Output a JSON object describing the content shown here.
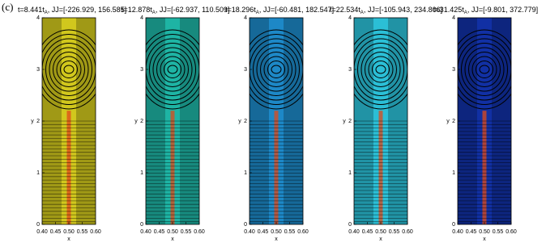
{
  "panel_label": "(c)",
  "chart_data": [
    {
      "type": "contour",
      "title": [
        "t=8.441t",
        "A",
        ", JJ=[-226.929, 156.585]"
      ],
      "xlabel": "x",
      "ylabel": "y",
      "color": "#d6cc1e",
      "xlim": [
        0.4,
        0.6
      ],
      "xticks": [
        {
          "value": 0.4,
          "label": "0.40"
        },
        {
          "value": 0.45,
          "label": "0.45"
        },
        {
          "value": 0.5,
          "label": "0.50"
        },
        {
          "value": 0.55,
          "label": "0.55"
        },
        {
          "value": 0.6,
          "label": "0.60"
        }
      ],
      "ylim": [
        0,
        4
      ],
      "yticks": [
        0,
        1,
        2,
        3,
        4
      ]
    },
    {
      "type": "contour",
      "title": [
        "t=12.878t",
        "A",
        ", JJ=[-62.937, 110.509]"
      ],
      "xlabel": "x",
      "ylabel": "y",
      "color": "#1fb8a8",
      "xlim": [
        0.4,
        0.6
      ],
      "xticks": [
        {
          "value": 0.4,
          "label": "0.40"
        },
        {
          "value": 0.45,
          "label": "0.45"
        },
        {
          "value": 0.5,
          "label": "0.50"
        },
        {
          "value": 0.55,
          "label": "0.55"
        },
        {
          "value": 0.6,
          "label": "0.60"
        }
      ],
      "ylim": [
        0,
        4
      ],
      "yticks": [
        0,
        1,
        2,
        3,
        4
      ]
    },
    {
      "type": "contour",
      "title": [
        "t=18.296t",
        "A",
        ", JJ=[-60.481, 182.547]"
      ],
      "xlabel": "x",
      "ylabel": "y",
      "color": "#1e8ccc",
      "xlim": [
        0.4,
        0.6
      ],
      "xticks": [
        {
          "value": 0.4,
          "label": "0.40"
        },
        {
          "value": 0.45,
          "label": "0.45"
        },
        {
          "value": 0.5,
          "label": "0.50"
        },
        {
          "value": 0.55,
          "label": "0.55"
        },
        {
          "value": 0.6,
          "label": "0.60"
        }
      ],
      "ylim": [
        0,
        4
      ],
      "yticks": [
        0,
        1,
        2,
        3,
        4
      ]
    },
    {
      "type": "contour",
      "title": [
        "t=22.534t",
        "A",
        ", JJ=[-105.943, 234.806]"
      ],
      "xlabel": "x",
      "ylabel": "y",
      "color": "#2cc4dc",
      "xlim": [
        0.4,
        0.6
      ],
      "xticks": [
        {
          "value": 0.4,
          "label": "0.40"
        },
        {
          "value": 0.45,
          "label": "0.45"
        },
        {
          "value": 0.5,
          "label": "0.50"
        },
        {
          "value": 0.55,
          "label": "0.55"
        },
        {
          "value": 0.6,
          "label": "0.60"
        }
      ],
      "ylim": [
        0,
        4
      ],
      "yticks": [
        0,
        1,
        2,
        3,
        4
      ]
    },
    {
      "type": "contour",
      "title": [
        "t=31.425t",
        "A",
        ", JJ=[-9.801, 372.779]"
      ],
      "xlabel": "x",
      "ylabel": "y",
      "color": "#1232a8",
      "xlim": [
        0.4,
        0.6
      ],
      "xticks": [
        {
          "value": 0.4,
          "label": "0.40"
        },
        {
          "value": 0.45,
          "label": "0.45"
        },
        {
          "value": 0.5,
          "label": "0.50"
        },
        {
          "value": 0.55,
          "label": "0.55"
        },
        {
          "value": 0.6,
          "label": "0.60"
        }
      ],
      "ylim": [
        0,
        4
      ],
      "yticks": [
        0,
        1,
        2,
        3,
        4
      ]
    }
  ]
}
